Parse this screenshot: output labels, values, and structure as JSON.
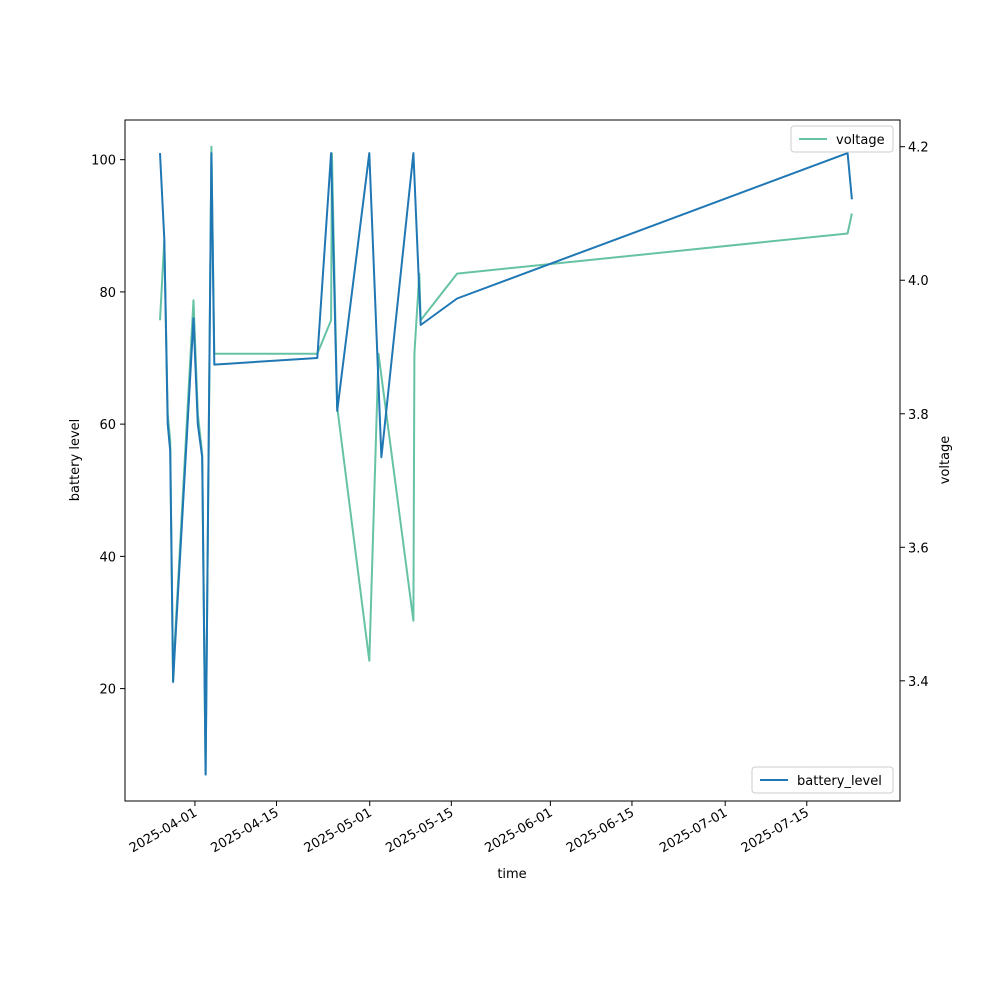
{
  "chart_data": {
    "type": "line",
    "xlabel": "time",
    "ylabel": "battery level",
    "y2label": "voltage",
    "x_ticks": [
      "2025-04-01",
      "2025-04-15",
      "2025-05-01",
      "2025-05-15",
      "2025-06-01",
      "2025-06-15",
      "2025-07-01",
      "2025-07-15"
    ],
    "y_ticks": [
      20,
      40,
      60,
      80,
      100
    ],
    "y2_ticks": [
      "3.4",
      "3.6",
      "3.8",
      "4.0",
      "4.2"
    ],
    "xlim": [
      "2025-03-20",
      "2025-07-31"
    ],
    "ylim": [
      3,
      106
    ],
    "y2lim": [
      3.22,
      4.24
    ],
    "grid": false,
    "series": [
      {
        "name": "battery_level",
        "axis": "left",
        "color": "#1f77b4",
        "legend_position": "lower-right",
        "points": [
          [
            "2025-03-26T00:00",
            101
          ],
          [
            "2025-03-26T18:00",
            88
          ],
          [
            "2025-03-27T08:00",
            60
          ],
          [
            "2025-03-27T18:00",
            56
          ],
          [
            "2025-03-28T06:00",
            21
          ],
          [
            "2025-03-28T12:00",
            25
          ],
          [
            "2025-03-31T18:00",
            76
          ],
          [
            "2025-04-01T12:00",
            60
          ],
          [
            "2025-04-02T06:00",
            55
          ],
          [
            "2025-04-02T20:00",
            7
          ],
          [
            "2025-04-03T20:00",
            101
          ],
          [
            "2025-04-04T08:00",
            69
          ],
          [
            "2025-04-22T00:00",
            70
          ],
          [
            "2025-04-24T09:00",
            101
          ],
          [
            "2025-04-25T10:00",
            62
          ],
          [
            "2025-04-30T22:00",
            101
          ],
          [
            "2025-05-03T00:00",
            55
          ],
          [
            "2025-05-08T12:00",
            101
          ],
          [
            "2025-05-09T18:00",
            75
          ],
          [
            "2025-05-16T00:00",
            79
          ],
          [
            "2025-07-22T00:00",
            101
          ],
          [
            "2025-07-22T18:00",
            94
          ]
        ]
      },
      {
        "name": "voltage",
        "axis": "right",
        "color": "#66c2a5",
        "legend_position": "upper-right",
        "points": [
          [
            "2025-03-26T00:00",
            3.94
          ],
          [
            "2025-03-26T18:00",
            4.06
          ],
          [
            "2025-03-27T08:00",
            3.8
          ],
          [
            "2025-03-27T18:00",
            3.76
          ],
          [
            "2025-03-28T06:00",
            3.4
          ],
          [
            "2025-03-28T12:00",
            3.45
          ],
          [
            "2025-03-31T18:00",
            3.97
          ],
          [
            "2025-04-01T12:00",
            3.8
          ],
          [
            "2025-04-02T06:00",
            3.74
          ],
          [
            "2025-04-02T20:00",
            3.26
          ],
          [
            "2025-04-03T20:00",
            4.2
          ],
          [
            "2025-04-04T08:00",
            3.89
          ],
          [
            "2025-04-22T00:00",
            3.89
          ],
          [
            "2025-04-24T09:00",
            3.94
          ],
          [
            "2025-04-24T12:00",
            4.19
          ],
          [
            "2025-04-25T10:00",
            3.81
          ],
          [
            "2025-04-30T22:00",
            3.43
          ],
          [
            "2025-05-02T12:00",
            3.89
          ],
          [
            "2025-05-08T12:00",
            3.49
          ],
          [
            "2025-05-08T16:00",
            3.89
          ],
          [
            "2025-05-09T12:00",
            4.01
          ],
          [
            "2025-05-09T18:00",
            3.94
          ],
          [
            "2025-05-16T00:00",
            4.01
          ],
          [
            "2025-07-22T00:00",
            4.07
          ],
          [
            "2025-07-22T18:00",
            4.1
          ]
        ]
      }
    ]
  }
}
